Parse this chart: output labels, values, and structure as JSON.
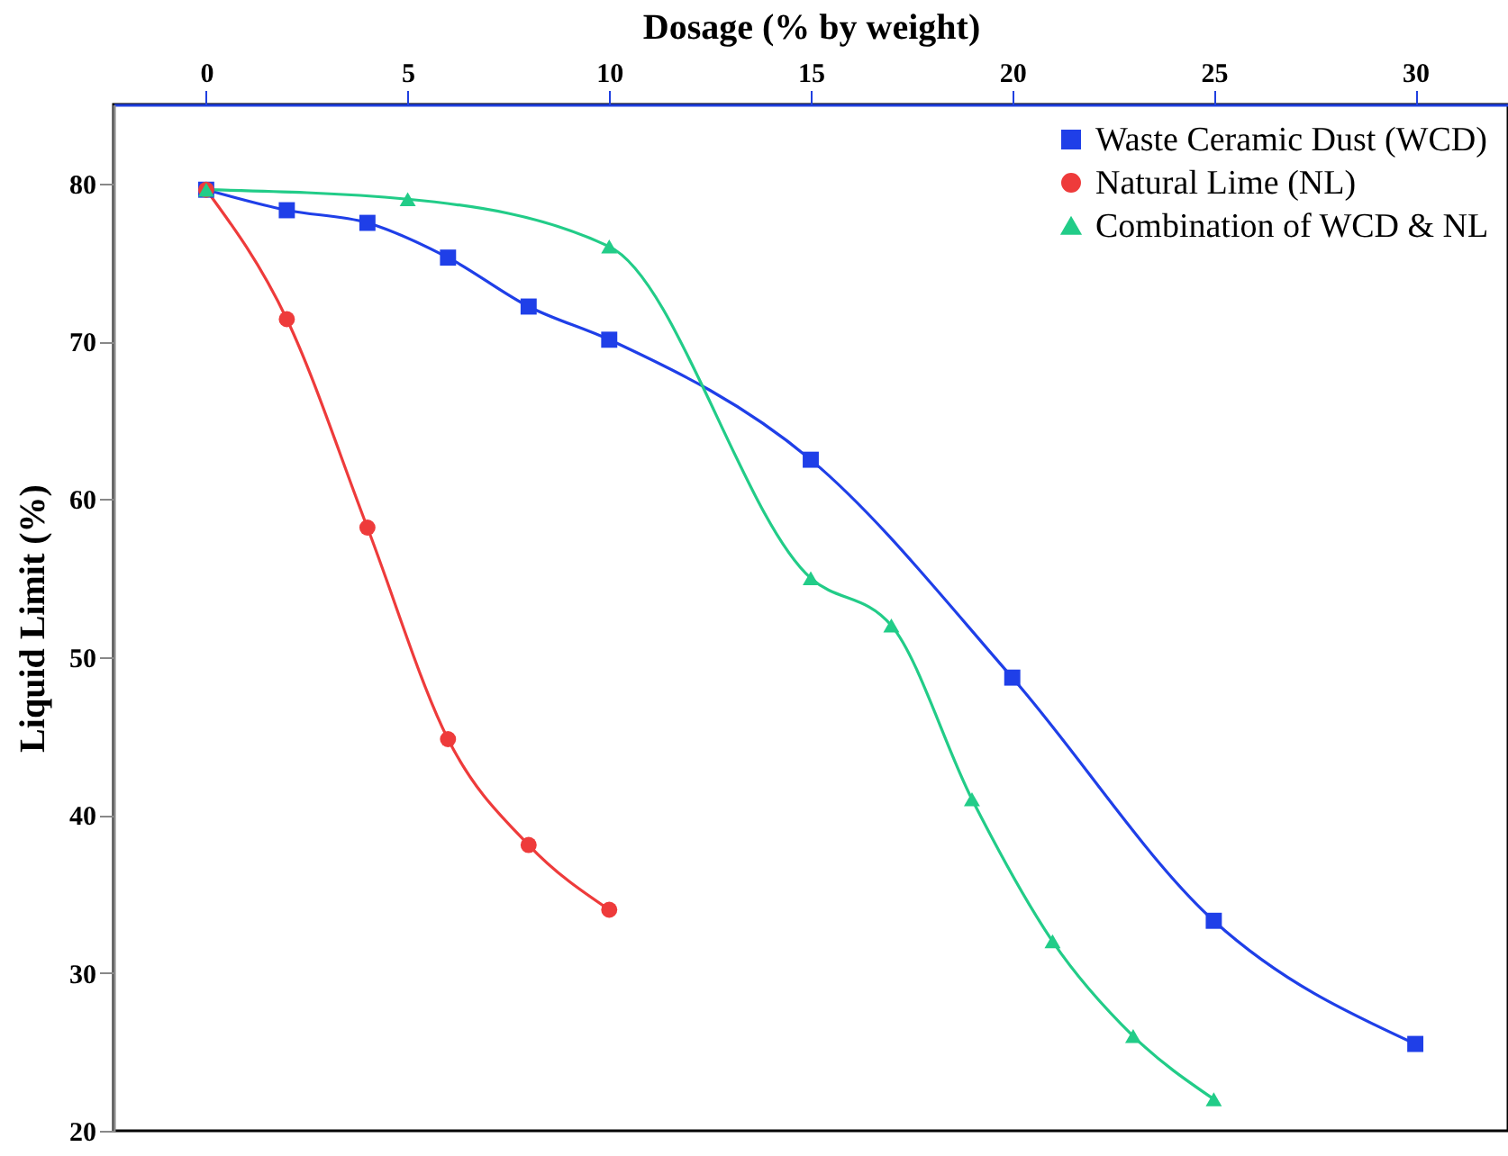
{
  "chart_data": {
    "type": "line",
    "xlabel": "Dosage (% by weight)",
    "ylabel": "Liquid Limit (%)",
    "xlim": [
      -2.3,
      32.3
    ],
    "ylim": [
      20,
      85
    ],
    "xticks": [
      0,
      5,
      10,
      15,
      20,
      25,
      30
    ],
    "yticks": [
      20,
      30,
      40,
      50,
      60,
      70,
      80
    ],
    "grid": false,
    "legend": "top right",
    "series": [
      {
        "name": "Waste Ceramic Dust (WCD)",
        "color": "#1f3fe8",
        "marker": "square",
        "x": [
          0,
          2,
          4,
          6,
          8,
          10,
          15,
          20,
          25,
          30
        ],
        "values": [
          79.6,
          78.3,
          77.5,
          75.3,
          72.2,
          70.1,
          62.5,
          48.7,
          33.3,
          25.5
        ]
      },
      {
        "name": "Natural Lime (NL)",
        "color": "#ee3b3b",
        "marker": "circle",
        "x": [
          0,
          2,
          4,
          6,
          8,
          10
        ],
        "values": [
          79.6,
          71.4,
          58.2,
          44.8,
          38.1,
          34.0
        ]
      },
      {
        "name": "Combination of WCD & NL",
        "color": "#22cc88",
        "marker": "triangle",
        "x": [
          0,
          5,
          10,
          15,
          17,
          19,
          21,
          23,
          25
        ],
        "values": [
          79.6,
          79.0,
          76.0,
          55.0,
          52.0,
          41.0,
          32.0,
          26.0,
          22.0
        ]
      }
    ]
  }
}
